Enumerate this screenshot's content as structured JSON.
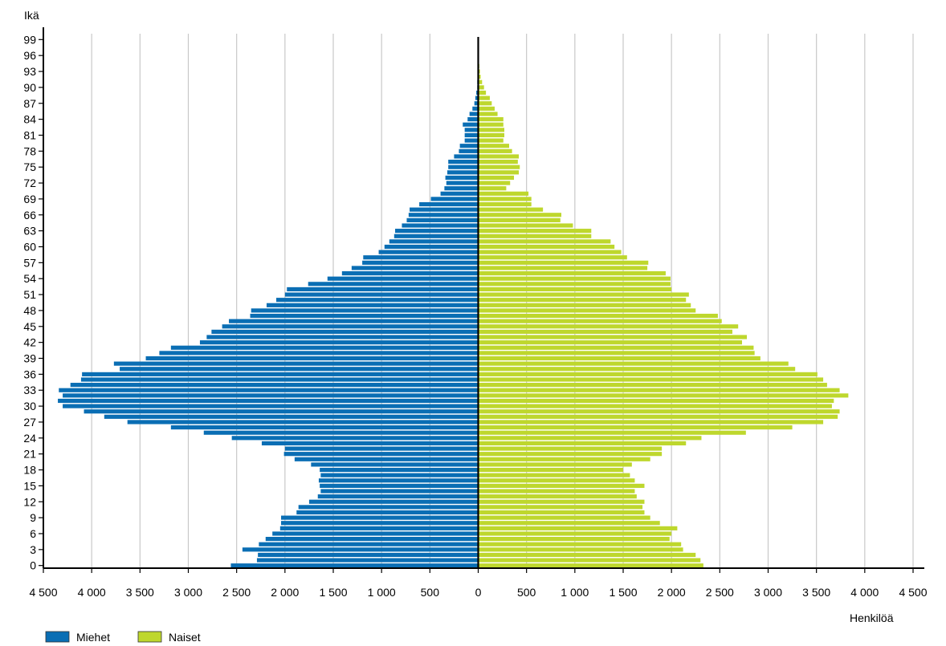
{
  "chart_data": {
    "type": "bar",
    "orientation": "horizontal",
    "layout": "population-pyramid",
    "ylabel": "Ikä",
    "xlabel": "Henkilöä",
    "xlim": [
      -4500,
      4500
    ],
    "x_ticks": [
      -4500,
      -4000,
      -3500,
      -3000,
      -2500,
      -2000,
      -1500,
      -1000,
      -500,
      0,
      500,
      1000,
      1500,
      2000,
      2500,
      3000,
      3500,
      4000,
      4500
    ],
    "x_tick_labels": [
      "4 500",
      "4 000",
      "3 500",
      "3 000",
      "2 500",
      "2 000",
      "1 500",
      "1 000",
      "500",
      "0",
      "500",
      "1 000",
      "1 500",
      "2 000",
      "2 500",
      "3 000",
      "3 500",
      "4 000",
      "4 500"
    ],
    "y_tick_labels": [
      "0",
      "3",
      "6",
      "9",
      "12",
      "15",
      "18",
      "21",
      "24",
      "27",
      "30",
      "33",
      "36",
      "39",
      "42",
      "45",
      "48",
      "51",
      "54",
      "57",
      "60",
      "63",
      "66",
      "69",
      "72",
      "75",
      "78",
      "81",
      "84",
      "87",
      "90",
      "93",
      "96",
      "99"
    ],
    "grid": "vertical",
    "legend_position": "bottom-left",
    "categories": [
      "0",
      "1",
      "2",
      "3",
      "4",
      "5",
      "6",
      "7",
      "8",
      "9",
      "10",
      "11",
      "12",
      "13",
      "14",
      "15",
      "16",
      "17",
      "18",
      "19",
      "20",
      "21",
      "22",
      "23",
      "24",
      "25",
      "26",
      "27",
      "28",
      "29",
      "30",
      "31",
      "32",
      "33",
      "34",
      "35",
      "36",
      "37",
      "38",
      "39",
      "40",
      "41",
      "42",
      "43",
      "44",
      "45",
      "46",
      "47",
      "48",
      "49",
      "50",
      "51",
      "52",
      "53",
      "54",
      "55",
      "56",
      "57",
      "58",
      "59",
      "60",
      "61",
      "62",
      "63",
      "64",
      "65",
      "66",
      "67",
      "68",
      "69",
      "70",
      "71",
      "72",
      "73",
      "74",
      "75",
      "76",
      "77",
      "78",
      "79",
      "80",
      "81",
      "82",
      "83",
      "84",
      "85",
      "86",
      "87",
      "88",
      "89",
      "90",
      "91",
      "92",
      "93",
      "94",
      "95",
      "96",
      "97",
      "98",
      "99"
    ],
    "series": [
      {
        "name": "Miehet",
        "color": "#0a6eb4",
        "values": [
          2560,
          2290,
          2280,
          2440,
          2270,
          2200,
          2130,
          2050,
          2040,
          2040,
          1880,
          1860,
          1750,
          1660,
          1630,
          1640,
          1650,
          1630,
          1640,
          1730,
          1900,
          2010,
          2000,
          2240,
          2550,
          2840,
          3180,
          3630,
          3870,
          4080,
          4300,
          4350,
          4300,
          4340,
          4220,
          4110,
          4100,
          3710,
          3770,
          3440,
          3300,
          3180,
          2880,
          2810,
          2760,
          2650,
          2580,
          2360,
          2350,
          2190,
          2090,
          2000,
          1980,
          1760,
          1560,
          1410,
          1310,
          1200,
          1190,
          1030,
          970,
          920,
          870,
          860,
          790,
          740,
          720,
          710,
          610,
          490,
          390,
          350,
          330,
          340,
          320,
          310,
          310,
          250,
          200,
          190,
          140,
          140,
          140,
          160,
          110,
          90,
          60,
          40,
          30,
          20,
          10,
          10,
          5,
          5,
          5,
          2,
          2,
          1,
          1,
          1
        ]
      },
      {
        "name": "Naiset",
        "color": "#bed72d",
        "values": [
          2330,
          2300,
          2250,
          2120,
          2100,
          1980,
          2000,
          2060,
          1880,
          1780,
          1720,
          1700,
          1720,
          1640,
          1620,
          1720,
          1620,
          1570,
          1500,
          1590,
          1780,
          1900,
          1900,
          2150,
          2310,
          2770,
          3250,
          3570,
          3720,
          3740,
          3660,
          3680,
          3830,
          3740,
          3610,
          3570,
          3510,
          3280,
          3210,
          2920,
          2860,
          2850,
          2730,
          2780,
          2630,
          2690,
          2520,
          2480,
          2250,
          2200,
          2150,
          2180,
          2000,
          1990,
          1990,
          1940,
          1750,
          1760,
          1540,
          1480,
          1410,
          1370,
          1170,
          1170,
          980,
          850,
          860,
          670,
          550,
          550,
          520,
          290,
          330,
          370,
          420,
          430,
          410,
          420,
          350,
          320,
          260,
          270,
          270,
          260,
          260,
          200,
          170,
          140,
          120,
          80,
          60,
          40,
          25,
          18,
          12,
          8,
          5,
          3,
          2,
          1
        ]
      }
    ]
  }
}
